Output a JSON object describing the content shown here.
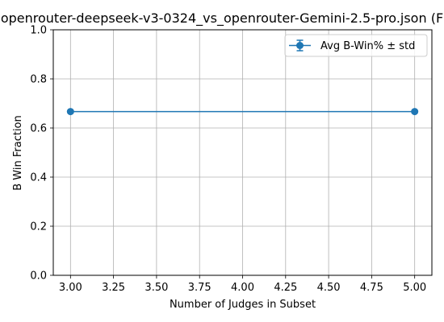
{
  "chart_data": {
    "type": "line",
    "title": "openrouter-deepseek-v3-0324_vs_openrouter-Gemini-2.5-pro.json (F",
    "xlabel": "Number of Judges in Subset",
    "ylabel": "B Win Fraction",
    "xlim": [
      2.9,
      5.1
    ],
    "ylim": [
      0.0,
      1.0
    ],
    "xticks": [
      3.0,
      3.25,
      3.5,
      3.75,
      4.0,
      4.25,
      4.5,
      4.75,
      5.0
    ],
    "xtick_labels": [
      "3.00",
      "3.25",
      "3.50",
      "3.75",
      "4.00",
      "4.25",
      "4.50",
      "4.75",
      "5.00"
    ],
    "yticks": [
      0.0,
      0.2,
      0.4,
      0.6,
      0.8,
      1.0
    ],
    "ytick_labels": [
      "0.0",
      "0.2",
      "0.4",
      "0.6",
      "0.8",
      "1.0"
    ],
    "grid": true,
    "legend_position": "top-right",
    "series": [
      {
        "name": "Avg B-Win% ± std",
        "color": "#1f77b4",
        "marker": "circle",
        "x": [
          3,
          5
        ],
        "y": [
          0.667,
          0.667
        ],
        "std": [
          0.0,
          0.0
        ]
      }
    ]
  }
}
